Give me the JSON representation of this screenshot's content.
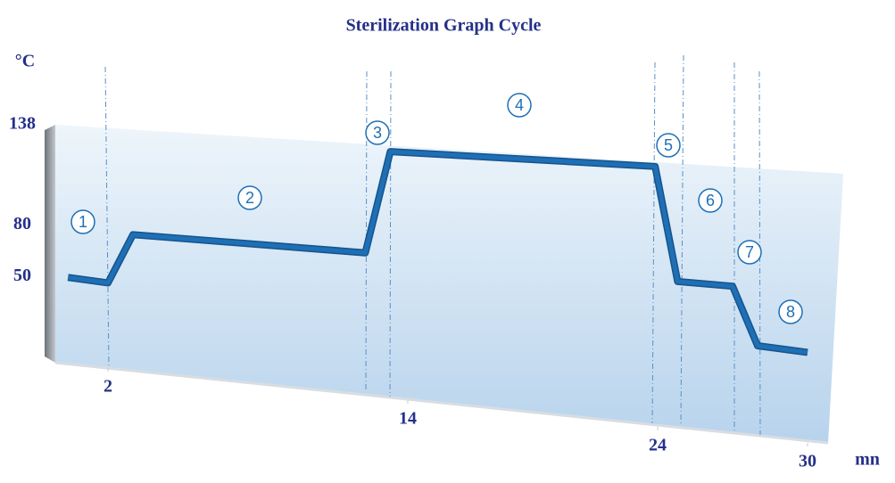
{
  "chart_data": {
    "type": "line",
    "title": "Sterilization Graph Cycle",
    "y_label": "°C",
    "x_label": "mn",
    "x": [
      0.4,
      2,
      3,
      12.3,
      13.3,
      23.9,
      24.8,
      27,
      28,
      30
    ],
    "values": [
      50,
      49,
      78,
      79,
      136,
      138,
      78,
      78,
      48,
      47
    ],
    "color": "#1f6fb5",
    "xlim": [
      0,
      30
    ],
    "xticks": [
      2,
      14,
      24,
      30
    ],
    "ylim": [
      0,
      138
    ],
    "yticks": [
      50,
      80,
      138
    ],
    "annotations": [
      "1",
      "2",
      "3",
      "4",
      "5",
      "6",
      "7",
      "8"
    ]
  }
}
